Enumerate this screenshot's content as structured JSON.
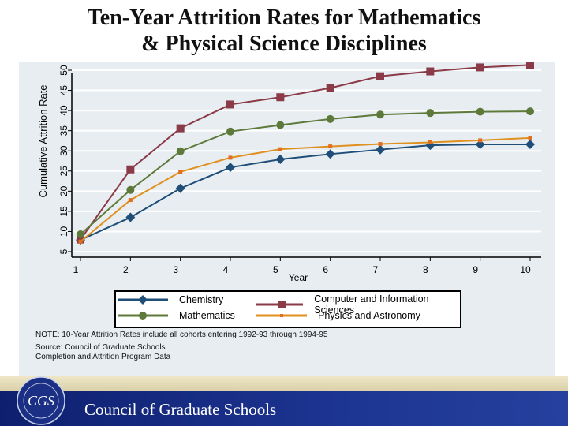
{
  "chart_data": {
    "type": "line",
    "title": "Ten-Year Attrition Rates for Mathematics & Physical Science Disciplines",
    "title_lines": [
      "Ten-Year Attrition Rates for Mathematics",
      "& Physical Science Disciplines"
    ],
    "xlabel": "Year",
    "ylabel": "Cumulative Attrition Rate",
    "x": [
      1,
      2,
      3,
      4,
      5,
      6,
      7,
      8,
      9,
      10
    ],
    "yticks": [
      5,
      10,
      15,
      20,
      25,
      30,
      35,
      40,
      45,
      50
    ],
    "ylim": [
      5,
      51.5
    ],
    "grid": true,
    "legend": "bottom",
    "series": [
      {
        "name": "Chemistry",
        "color": "#1f4e79",
        "marker": "diamond",
        "values": [
          7.9,
          13.5,
          20.7,
          25.9,
          27.9,
          29.2,
          30.3,
          31.4,
          31.6,
          31.6
        ]
      },
      {
        "name": "Computer and Information Sciences",
        "color": "#8b3a47",
        "marker": "square",
        "values": [
          8.0,
          25.4,
          35.6,
          41.5,
          43.3,
          45.6,
          48.5,
          49.7,
          50.7,
          51.3
        ]
      },
      {
        "name": "Mathematics",
        "color": "#5e7a3a",
        "marker": "circle",
        "values": [
          9.3,
          20.3,
          29.9,
          34.8,
          36.4,
          37.9,
          39.0,
          39.4,
          39.7,
          39.8
        ]
      },
      {
        "name": "Physics and Astronomy",
        "color": "#e0901e",
        "marker": "cross",
        "values": [
          7.5,
          17.8,
          24.8,
          28.3,
          30.4,
          31.1,
          31.7,
          32.1,
          32.6,
          33.2
        ]
      }
    ]
  },
  "note": "NOTE: 10-Year Attrition Rates include all cohorts entering 1992-93 through 1994-95",
  "source_lines": [
    "Source: Council of Graduate Schools",
    "Completion and Attrition Program Data"
  ],
  "footer": {
    "org": "Council of Graduate Schools",
    "logo_text": "COUNCIL OF GRADUATE SCHOOLS CGS"
  }
}
